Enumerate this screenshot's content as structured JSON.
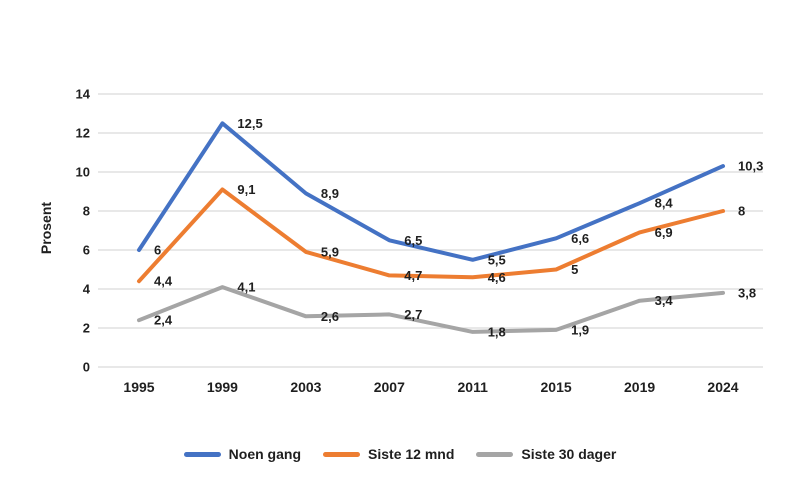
{
  "chart_data": {
    "type": "line",
    "ylabel": "Prosent",
    "xlabel": "",
    "categories": [
      "1995",
      "1999",
      "2003",
      "2007",
      "2011",
      "2015",
      "2019",
      "2024"
    ],
    "series": [
      {
        "name": "Noen gang",
        "color": "#4472C4",
        "values": [
          6,
          12.5,
          8.9,
          6.5,
          5.5,
          6.6,
          8.4,
          10.3
        ],
        "labels": [
          "6",
          "12,5",
          "8,9",
          "6,5",
          "5,5",
          "6,6",
          "8,4",
          "10,3"
        ]
      },
      {
        "name": "Siste 12 mnd",
        "color": "#ED7D31",
        "values": [
          4.4,
          9.1,
          5.9,
          4.7,
          4.6,
          5,
          6.9,
          8
        ],
        "labels": [
          "4,4",
          "9,1",
          "5,9",
          "4,7",
          "4,6",
          "5",
          "6,9",
          "8"
        ]
      },
      {
        "name": "Siste 30 dager",
        "color": "#A5A5A5",
        "values": [
          2.4,
          4.1,
          2.6,
          2.7,
          1.8,
          1.9,
          3.4,
          3.8
        ],
        "labels": [
          "2,4",
          "4,1",
          "2,6",
          "2,7",
          "1,8",
          "1,9",
          "3,4",
          "3,8"
        ]
      }
    ],
    "y_ticks": [
      "0",
      "2",
      "4",
      "6",
      "8",
      "10",
      "12",
      "14"
    ],
    "y_tick_values": [
      0,
      2,
      4,
      6,
      8,
      10,
      12,
      14
    ],
    "ylim": [
      0,
      14
    ],
    "grid": true,
    "legend_position": "bottom",
    "colors": {
      "grid": "#D9D9D9",
      "text": "#1f1f1f",
      "background": "#ffffff"
    }
  }
}
